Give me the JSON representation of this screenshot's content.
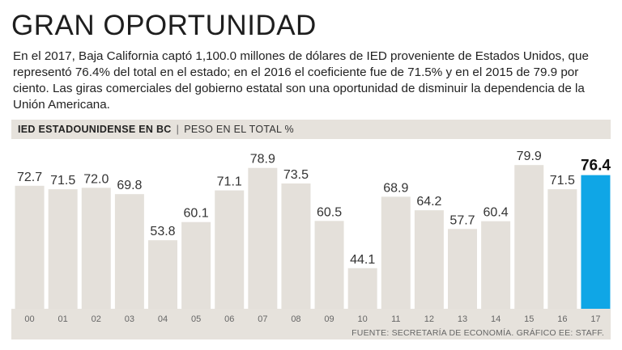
{
  "header": {
    "title": "GRAN OPORTUNIDAD",
    "description": "En el 2017, Baja California captó 1,100.0 millones de dólares de IED proveniente de Estados Unidos, que representó 76.4% del total en el estado; en el 2016 el coeficiente fue de 71.5% y en el 2015 de 79.9 por ciento. Las giras comerciales del gobierno estatal son una oportunidad de disminuir la dependencia de la Unión Americana."
  },
  "chart_header": {
    "main": "IED ESTADOUNIDENSE EN BC",
    "separator": "|",
    "sub": "PESO EN EL TOTAL %"
  },
  "footer": {
    "source": "FUENTE: SECRETARÍA DE ECONOMÍA. GRÁFICO EE: STAFF."
  },
  "colors": {
    "bar": "#e4e0da",
    "highlight": "#0fa6e6",
    "axis_band": "#e6e2dc"
  },
  "chart_data": {
    "type": "bar",
    "title": "IED ESTADOUNIDENSE EN BC",
    "ylabel": "PESO EN EL TOTAL %",
    "xlabel": "",
    "categories": [
      "00",
      "01",
      "02",
      "03",
      "04",
      "05",
      "06",
      "07",
      "08",
      "09",
      "10",
      "11",
      "12",
      "13",
      "14",
      "15",
      "16",
      "17"
    ],
    "values": [
      72.7,
      71.5,
      72.0,
      69.8,
      53.8,
      60.1,
      71.1,
      78.9,
      73.5,
      60.5,
      44.1,
      68.9,
      64.2,
      57.7,
      60.4,
      79.9,
      71.5,
      76.4
    ],
    "labels": [
      "72.7",
      "71.5",
      "72.0",
      "69.8",
      "53.8",
      "60.1",
      "71.1",
      "78.9",
      "73.5",
      "60.5",
      "44.1",
      "68.9",
      "64.2",
      "57.7",
      "60.4",
      "79.9",
      "71.5",
      "76.4"
    ],
    "highlight_index": 17,
    "ylim": [
      30,
      85
    ],
    "grid": false,
    "legend": "none"
  }
}
